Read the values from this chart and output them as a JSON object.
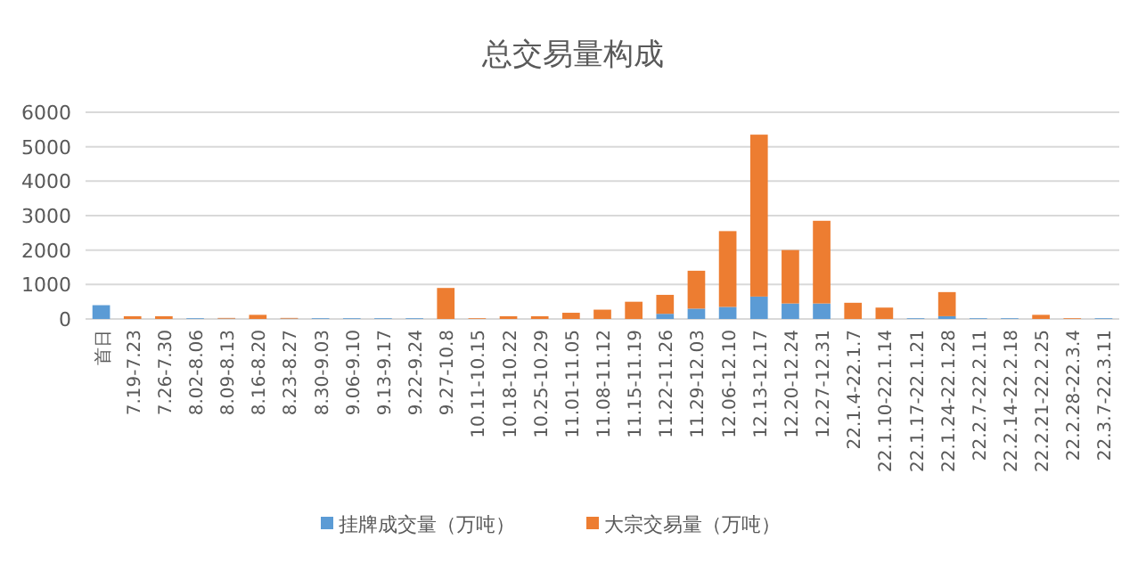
{
  "chart_data": {
    "type": "bar",
    "title": "总交易量构成",
    "stacked": true,
    "grid": "y",
    "legend": "bottom",
    "categories": [
      "首日",
      "7.19-7.23",
      "7.26-7.30",
      "8.02-8.06",
      "8.09-8.13",
      "8.16-8.20",
      "8.23-8.27",
      "8.30-9.03",
      "9.06-9.10",
      "9.13-9.17",
      "9.22-9.24",
      "9.27-10.8",
      "10.11-10.15",
      "10.18-10.22",
      "10.25-10.29",
      "11.01-11.05",
      "11.08-11.12",
      "11.15-11.19",
      "11.22-11.26",
      "11.29-12.03",
      "12.06-12.10",
      "12.13-12.17",
      "12.20-12.24",
      "12.27-12.31",
      "22.1.4-22.1.7",
      "22.1.10-22.1.14",
      "22.1.17-22.1.21",
      "22.1.24-22.1.28",
      "22.2.7-22.2.11",
      "22.2.14-22.2.18",
      "22.2.21-22.2.25",
      "22.2.28-22.3.4",
      "22.3.7-22.3.11"
    ],
    "ylim": [
      0,
      6000
    ],
    "yticks": [
      0,
      1000,
      2000,
      3000,
      4000,
      5000,
      6000
    ],
    "series": [
      {
        "name": "挂牌成交量（万吨）",
        "color": "#5b9bd5",
        "values": [
          400,
          0,
          0,
          20,
          10,
          0,
          10,
          20,
          20,
          20,
          20,
          0,
          0,
          0,
          0,
          0,
          0,
          0,
          150,
          300,
          350,
          650,
          450,
          450,
          0,
          0,
          20,
          80,
          20,
          20,
          0,
          0,
          20
        ]
      },
      {
        "name": "大宗交易量（万吨）",
        "color": "#ed7d31",
        "values": [
          0,
          80,
          80,
          0,
          20,
          120,
          20,
          0,
          0,
          0,
          0,
          900,
          20,
          80,
          80,
          180,
          270,
          500,
          550,
          1100,
          2200,
          4700,
          1550,
          2400,
          470,
          330,
          0,
          700,
          0,
          0,
          120,
          20,
          0
        ]
      }
    ]
  }
}
